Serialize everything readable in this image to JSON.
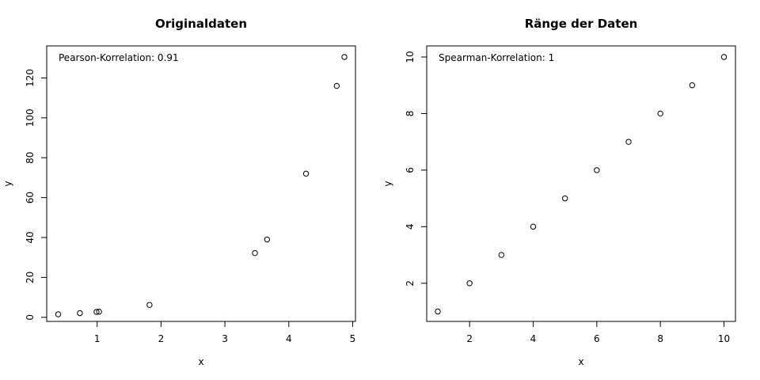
{
  "chart_data": [
    {
      "type": "scatter",
      "title": "Originaldaten",
      "xlabel": "x",
      "ylabel": "y",
      "annotation": "Pearson-Korrelation: 0.91",
      "xlim": [
        0.4,
        5.0
      ],
      "ylim": [
        0,
        130
      ],
      "xticks": [
        1,
        2,
        3,
        4,
        5
      ],
      "yticks": [
        0,
        20,
        40,
        60,
        80,
        100,
        120
      ],
      "grid": false,
      "points": [
        {
          "x": 0.39,
          "y": 1.5
        },
        {
          "x": 0.73,
          "y": 2.1
        },
        {
          "x": 0.99,
          "y": 2.7
        },
        {
          "x": 1.03,
          "y": 2.8
        },
        {
          "x": 1.82,
          "y": 6.2
        },
        {
          "x": 3.47,
          "y": 32.2
        },
        {
          "x": 3.66,
          "y": 39.0
        },
        {
          "x": 4.27,
          "y": 72.0
        },
        {
          "x": 4.75,
          "y": 116.0
        },
        {
          "x": 4.87,
          "y": 130.5
        }
      ]
    },
    {
      "type": "scatter",
      "title": "Ränge der Daten",
      "xlabel": "x",
      "ylabel": "y",
      "annotation": "Spearman-Korrelation: 1",
      "xlim": [
        1,
        10
      ],
      "ylim": [
        1,
        10
      ],
      "xticks": [
        2,
        4,
        6,
        8,
        10
      ],
      "yticks": [
        2,
        4,
        6,
        8,
        10
      ],
      "grid": false,
      "points": [
        {
          "x": 1,
          "y": 1
        },
        {
          "x": 2,
          "y": 2
        },
        {
          "x": 3,
          "y": 3
        },
        {
          "x": 4,
          "y": 4
        },
        {
          "x": 5,
          "y": 5
        },
        {
          "x": 6,
          "y": 6
        },
        {
          "x": 7,
          "y": 7
        },
        {
          "x": 8,
          "y": 8
        },
        {
          "x": 9,
          "y": 9
        },
        {
          "x": 10,
          "y": 10
        }
      ]
    }
  ]
}
